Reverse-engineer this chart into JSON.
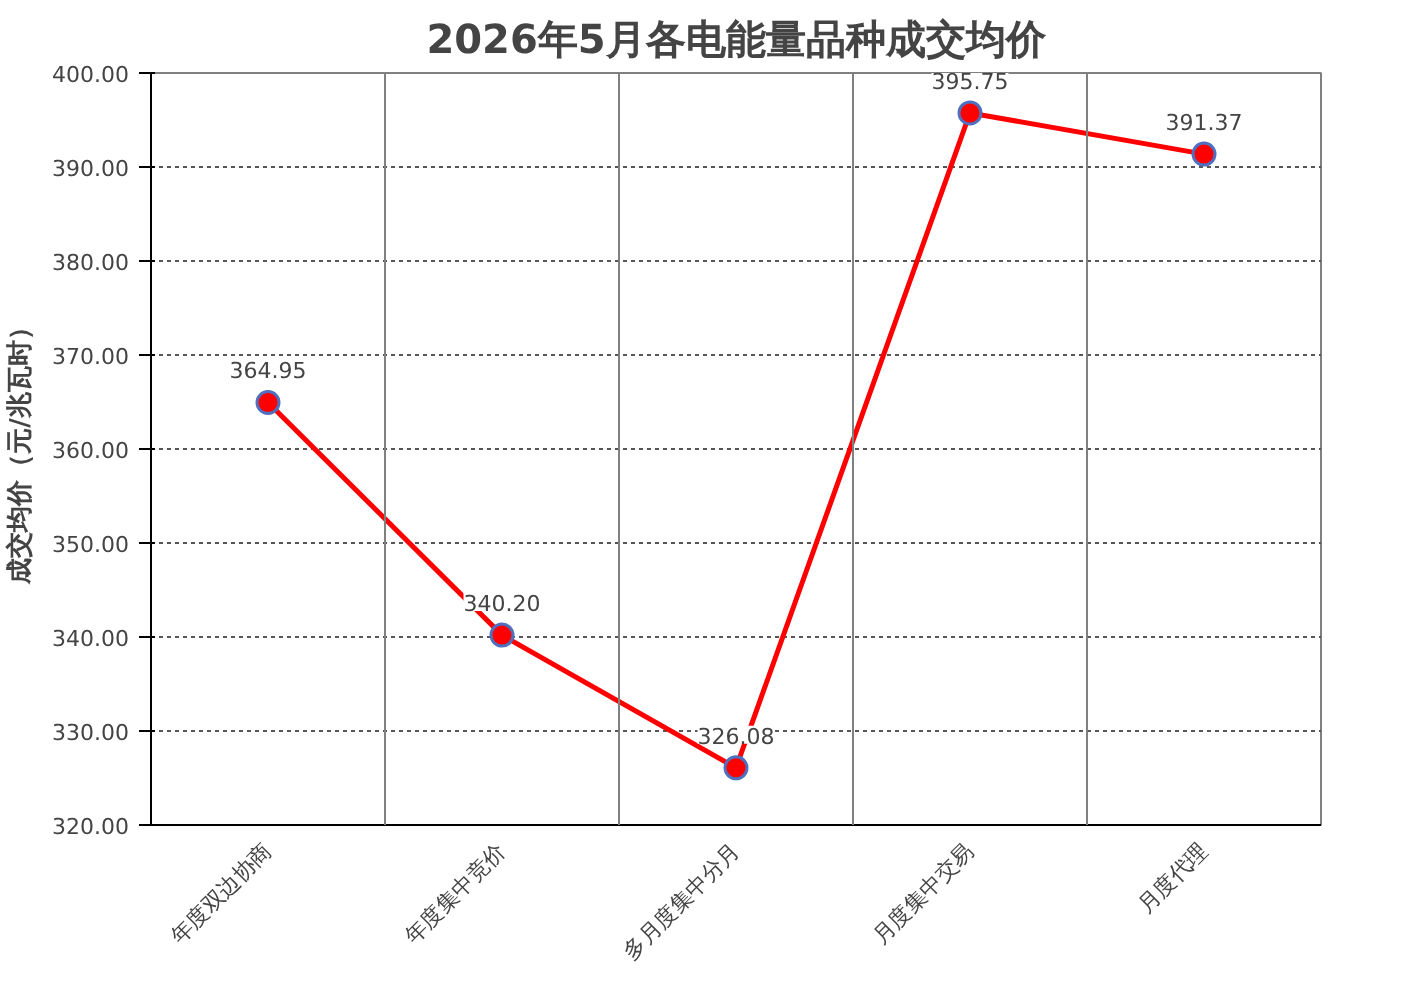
{
  "chart_data": {
    "type": "line",
    "title": "2026年5月各电能量品种成交均价",
    "ylabel": "成交均价（元/兆瓦时）",
    "categories": [
      "年度双边协商",
      "年度集中竞价",
      "多月度集中分月",
      "月度集中交易",
      "月度代理"
    ],
    "series": [
      {
        "color": "#ff0000",
        "values": [
          364.95,
          340.2,
          326.08,
          395.75,
          391.37
        ],
        "value_labels": [
          "364.95",
          "340.20",
          "326.08",
          "395.75",
          "391.37"
        ]
      }
    ],
    "ylim": [
      320,
      400
    ],
    "yticks": [
      {
        "value": 320,
        "label": "320.00"
      },
      {
        "value": 330,
        "label": "330.00"
      },
      {
        "value": 340,
        "label": "340.00"
      },
      {
        "value": 350,
        "label": "350.00"
      },
      {
        "value": 360,
        "label": "360.00"
      },
      {
        "value": 370,
        "label": "370.00"
      },
      {
        "value": 380,
        "label": "380.00"
      },
      {
        "value": 390,
        "label": "390.00"
      },
      {
        "value": 400,
        "label": "400.00"
      }
    ],
    "grid": true,
    "marker": "circle",
    "line_style": "solid"
  }
}
